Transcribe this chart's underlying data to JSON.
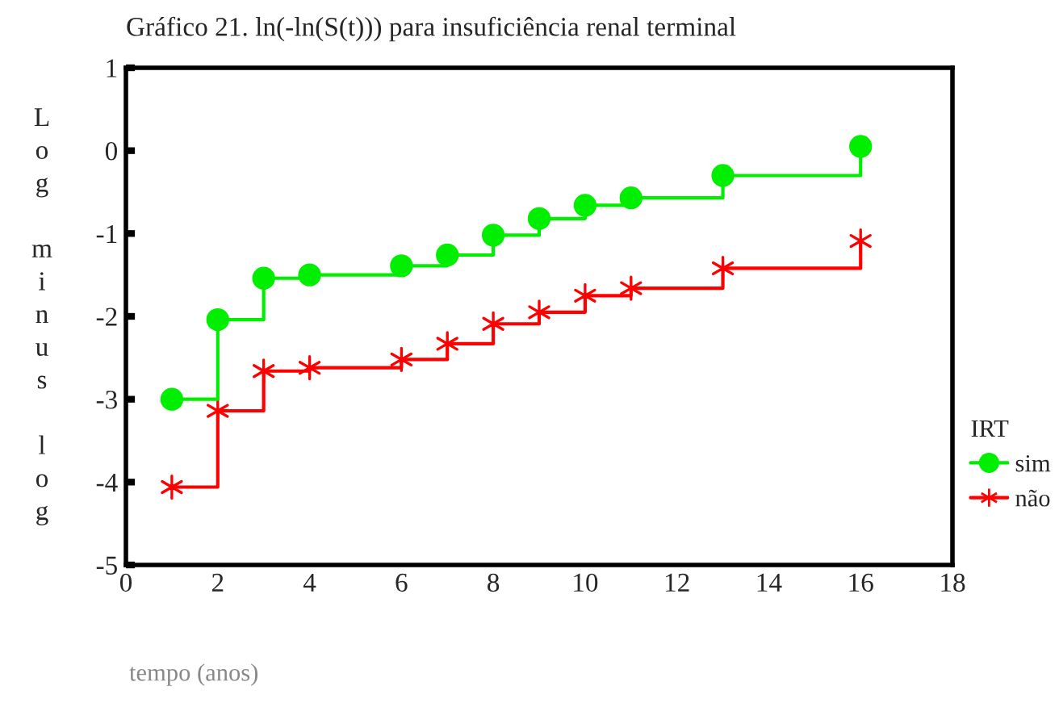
{
  "chart_data": {
    "type": "step",
    "title": "Gráfico 21. ln(-ln(S(t))) para insuficiência renal terminal",
    "xlabel": "tempo (anos)",
    "ylabel": "Log minus log",
    "legend_title": "IRT",
    "legend": "right",
    "xlim": [
      0,
      18
    ],
    "xticks": [
      0,
      2,
      4,
      6,
      8,
      10,
      12,
      14,
      16,
      18
    ],
    "ylim": [
      -5,
      1
    ],
    "yticks": [
      -5,
      -4,
      -3,
      -2,
      -1,
      0,
      1
    ],
    "grid": false,
    "series": [
      {
        "name": "sim",
        "color": "#00ee00",
        "marker": "circle",
        "x": [
          1,
          2,
          3,
          4,
          6,
          7,
          8,
          9,
          10,
          11,
          13,
          16
        ],
        "values": [
          -3.0,
          -2.04,
          -1.54,
          -1.5,
          -1.39,
          -1.26,
          -1.02,
          -0.82,
          -0.66,
          -0.57,
          -0.3,
          0.05
        ]
      },
      {
        "name": "não",
        "color": "#ff0000",
        "marker": "cross",
        "x": [
          1,
          2,
          3,
          4,
          6,
          7,
          8,
          9,
          10,
          11,
          13,
          16
        ],
        "values": [
          -4.06,
          -3.14,
          -2.66,
          -2.62,
          -2.52,
          -2.33,
          -2.09,
          -1.95,
          -1.75,
          -1.66,
          -1.42,
          -1.09
        ]
      }
    ]
  }
}
